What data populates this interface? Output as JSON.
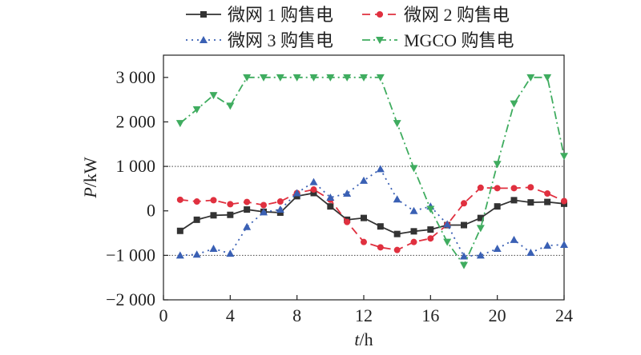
{
  "chart_data": {
    "type": "line",
    "xlabel_italic": "t",
    "xlabel_unit": "/h",
    "ylabel_italic": "P",
    "ylabel_unit": "/kW",
    "xlim": [
      0,
      24
    ],
    "ylim": [
      -2000,
      3500
    ],
    "xticks": [
      0,
      4,
      8,
      12,
      16,
      20,
      24
    ],
    "xtick_labels": [
      "0",
      "4",
      "8",
      "12",
      "16",
      "20",
      "24"
    ],
    "yticks": [
      -2000,
      -1000,
      0,
      1000,
      2000,
      3000
    ],
    "ytick_labels": [
      "−2 000",
      "−1 000",
      "0",
      "1 000",
      "2 000",
      "3 000"
    ],
    "reference_lines": [
      1000,
      -1000
    ],
    "x": [
      1,
      2,
      3,
      4,
      5,
      6,
      7,
      8,
      9,
      10,
      11,
      12,
      13,
      14,
      15,
      16,
      17,
      18,
      19,
      20,
      21,
      22,
      23,
      24
    ],
    "legend_position": "top",
    "series": [
      {
        "name": "微网 1 购售电",
        "color": "#333333",
        "dash": "",
        "marker": "square",
        "values": [
          -450,
          -200,
          -100,
          -90,
          30,
          -20,
          -40,
          330,
          400,
          100,
          -200,
          -160,
          -350,
          -520,
          -460,
          -420,
          -320,
          -320,
          -160,
          100,
          240,
          190,
          200,
          160
        ]
      },
      {
        "name": "微网 2 购售电",
        "color": "#e0303f",
        "dash": "10,6",
        "marker": "circle",
        "values": [
          250,
          210,
          240,
          150,
          200,
          130,
          210,
          400,
          480,
          250,
          -250,
          -700,
          -820,
          -880,
          -700,
          -620,
          -310,
          170,
          520,
          510,
          510,
          530,
          390,
          220
        ]
      },
      {
        "name": "微网 3 购售电",
        "color": "#3a60b4",
        "dash": "2,5",
        "marker": "triangle-up",
        "values": [
          -1000,
          -980,
          -850,
          -960,
          -360,
          -30,
          30,
          400,
          650,
          300,
          390,
          680,
          940,
          260,
          0,
          100,
          -300,
          -1020,
          -1000,
          -850,
          -650,
          -940,
          -780,
          -760
        ]
      },
      {
        "name": "MGCO 购售电",
        "color": "#3fac5f",
        "dash": "10,4,2,4",
        "marker": "triangle-down",
        "values": [
          1970,
          2280,
          2600,
          2360,
          3000,
          3000,
          3000,
          3000,
          3000,
          3000,
          3000,
          3000,
          3000,
          1970,
          960,
          40,
          -700,
          -1220,
          -390,
          1050,
          2410,
          3000,
          3000,
          1230
        ]
      }
    ]
  }
}
